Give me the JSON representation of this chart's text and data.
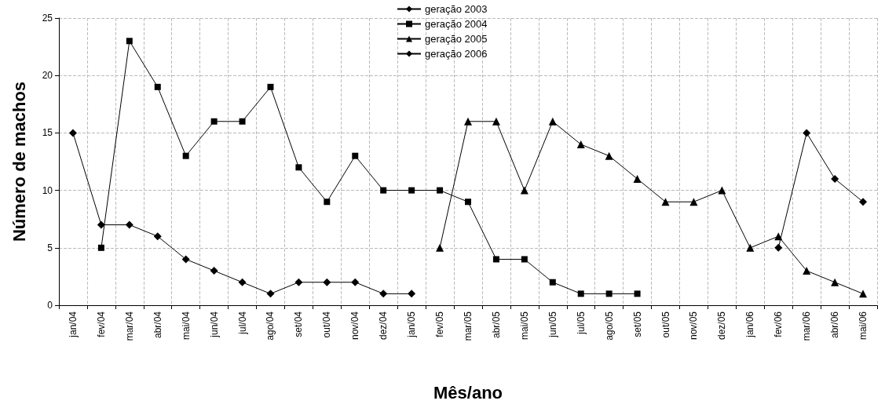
{
  "chart_data": {
    "type": "line",
    "xlabel": "Mês/ano",
    "ylabel": "Número de machos",
    "categories": [
      "jan/04",
      "fev/04",
      "mar/04",
      "abr/04",
      "mai/04",
      "jun/04",
      "jul/04",
      "ago/04",
      "set/04",
      "out/04",
      "nov/04",
      "dez/04",
      "jan/05",
      "fev/05",
      "mar/05",
      "abr/05",
      "mai/05",
      "jun/05",
      "jul/05",
      "ago/05",
      "set/05",
      "out/05",
      "nov/05",
      "dez/05",
      "jan/06",
      "fev/06",
      "mar/06",
      "abr/06",
      "mai/06"
    ],
    "series": [
      {
        "name": "geração 2003",
        "color": "#000000",
        "marker": "diamond",
        "values": [
          15,
          7,
          7,
          6,
          4,
          3,
          2,
          1,
          2,
          2,
          2,
          1,
          1,
          null,
          null,
          null,
          null,
          null,
          null,
          null,
          null,
          null,
          null,
          null,
          null,
          null,
          null,
          null,
          null
        ]
      },
      {
        "name": "geração 2004",
        "color": "#000000",
        "marker": "square",
        "values": [
          null,
          5,
          23,
          19,
          13,
          16,
          16,
          19,
          12,
          9,
          13,
          10,
          10,
          10,
          9,
          4,
          4,
          2,
          1,
          1,
          1,
          null,
          null,
          null,
          null,
          null,
          null,
          null,
          null
        ]
      },
      {
        "name": "geração 2005",
        "color": "#000000",
        "marker": "triangle",
        "values": [
          null,
          null,
          null,
          null,
          null,
          null,
          null,
          null,
          null,
          null,
          null,
          null,
          null,
          5,
          16,
          16,
          10,
          16,
          14,
          13,
          11,
          9,
          9,
          10,
          5,
          6,
          3,
          2,
          1
        ]
      },
      {
        "name": "geração 2006",
        "color": "#000000",
        "marker": "diamond",
        "values": [
          null,
          null,
          null,
          null,
          null,
          null,
          null,
          null,
          null,
          null,
          null,
          null,
          null,
          null,
          null,
          null,
          null,
          null,
          null,
          null,
          null,
          null,
          null,
          null,
          null,
          5,
          15,
          11,
          9
        ]
      }
    ],
    "ylim": [
      0,
      25
    ],
    "yticks": [
      0,
      5,
      10,
      15,
      20,
      25
    ],
    "grid": true,
    "legend": "top",
    "line_style": "solid"
  }
}
